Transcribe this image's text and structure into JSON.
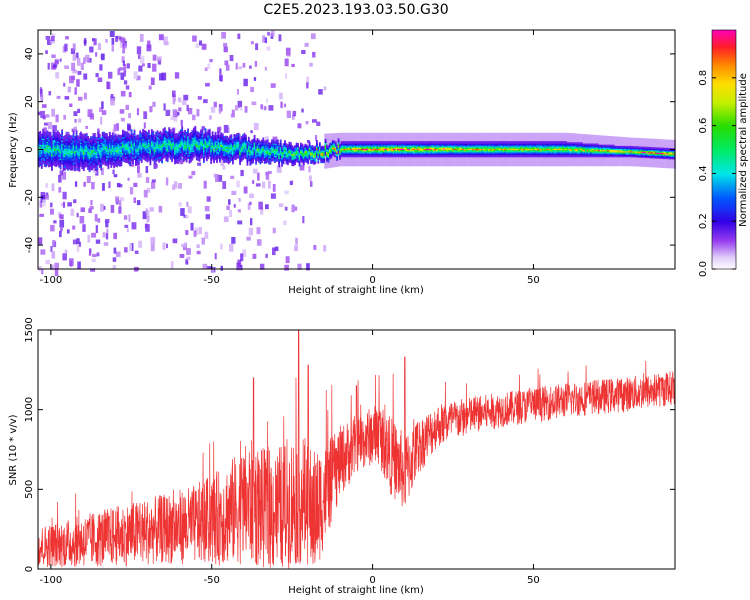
{
  "chart_data": [
    {
      "type": "heatmap",
      "title": "C2E5.2023.193.03.50.G30",
      "xlabel": "Height of straight line (km)",
      "ylabel": "Frequency (Hz)",
      "xlim": [
        -104,
        94
      ],
      "ylim": [
        -50,
        50
      ],
      "xticks": [
        "-100",
        "-50",
        "0",
        "50"
      ],
      "yticks": [
        "-40",
        "-20",
        "0",
        "20",
        "40"
      ],
      "colorbar": {
        "label": "Normalized spectral amplitude",
        "range": [
          0,
          1
        ],
        "ticks": [
          "0.0",
          "0.2",
          "0.4",
          "0.6",
          "0.8"
        ],
        "colormap": "gist_ncar_like"
      },
      "band_profile": [
        {
          "x": -104,
          "center_hz": 0,
          "halfwidth_hz": 7,
          "peak": 0.45
        },
        {
          "x": -90,
          "center_hz": -1,
          "halfwidth_hz": 7,
          "peak": 0.45
        },
        {
          "x": -70,
          "center_hz": 1,
          "halfwidth_hz": 6,
          "peak": 0.45
        },
        {
          "x": -55,
          "center_hz": 2,
          "halfwidth_hz": 6,
          "peak": 0.5
        },
        {
          "x": -40,
          "center_hz": 0,
          "halfwidth_hz": 5,
          "peak": 0.5
        },
        {
          "x": -25,
          "center_hz": -2,
          "halfwidth_hz": 4,
          "peak": 0.55
        },
        {
          "x": -10,
          "center_hz": 0,
          "halfwidth_hz": 3,
          "peak": 0.8
        },
        {
          "x": 0,
          "center_hz": 0,
          "halfwidth_hz": 3,
          "peak": 0.9
        },
        {
          "x": 13,
          "center_hz": 0,
          "halfwidth_hz": 3,
          "peak": 0.9
        },
        {
          "x": 30,
          "center_hz": 0,
          "halfwidth_hz": 3,
          "peak": 0.75
        },
        {
          "x": 60,
          "center_hz": 0,
          "halfwidth_hz": 3,
          "peak": 0.75
        },
        {
          "x": 80,
          "center_hz": -1,
          "halfwidth_hz": 2,
          "peak": 0.85
        },
        {
          "x": 94,
          "center_hz": -2,
          "halfwidth_hz": 2,
          "peak": 0.95
        }
      ],
      "scatter_noise_region_km": [
        -104,
        -15
      ]
    },
    {
      "type": "line",
      "xlabel": "Height of straight line (km)",
      "ylabel": "SNR (10 * v/v)",
      "xlim": [
        -104,
        94
      ],
      "ylim": [
        0,
        1500
      ],
      "xticks": [
        "-100",
        "-50",
        "0",
        "50"
      ],
      "yticks": [
        "0",
        "500",
        "1000",
        "1500"
      ],
      "color": "#ee3333",
      "series": [
        {
          "x": [
            -104,
            -95,
            -85,
            -75,
            -65,
            -55,
            -48,
            -42,
            -38,
            -34,
            -30,
            -26,
            -22,
            -18,
            -14,
            -10,
            -6,
            -2,
            2,
            6,
            10,
            14,
            20,
            30,
            40,
            50,
            60,
            70,
            80,
            88,
            94
          ],
          "mean": [
            140,
            160,
            190,
            220,
            250,
            280,
            320,
            380,
            420,
            380,
            360,
            420,
            450,
            350,
            500,
            680,
            760,
            820,
            850,
            700,
            600,
            760,
            900,
            960,
            1000,
            1030,
            1060,
            1080,
            1100,
            1120,
            1140
          ],
          "noise_amp": [
            130,
            150,
            180,
            200,
            220,
            250,
            300,
            350,
            400,
            380,
            400,
            420,
            420,
            400,
            300,
            220,
            200,
            180,
            200,
            250,
            250,
            180,
            140,
            120,
            110,
            110,
            110,
            110,
            110,
            110,
            110
          ]
        }
      ],
      "spikes": [
        {
          "x": -23,
          "y": 1500
        },
        {
          "x": -20,
          "y": 1280
        },
        {
          "x": -37,
          "y": 1200
        },
        {
          "x": 10,
          "y": 1330
        },
        {
          "x": -5,
          "y": 1150
        }
      ]
    }
  ]
}
